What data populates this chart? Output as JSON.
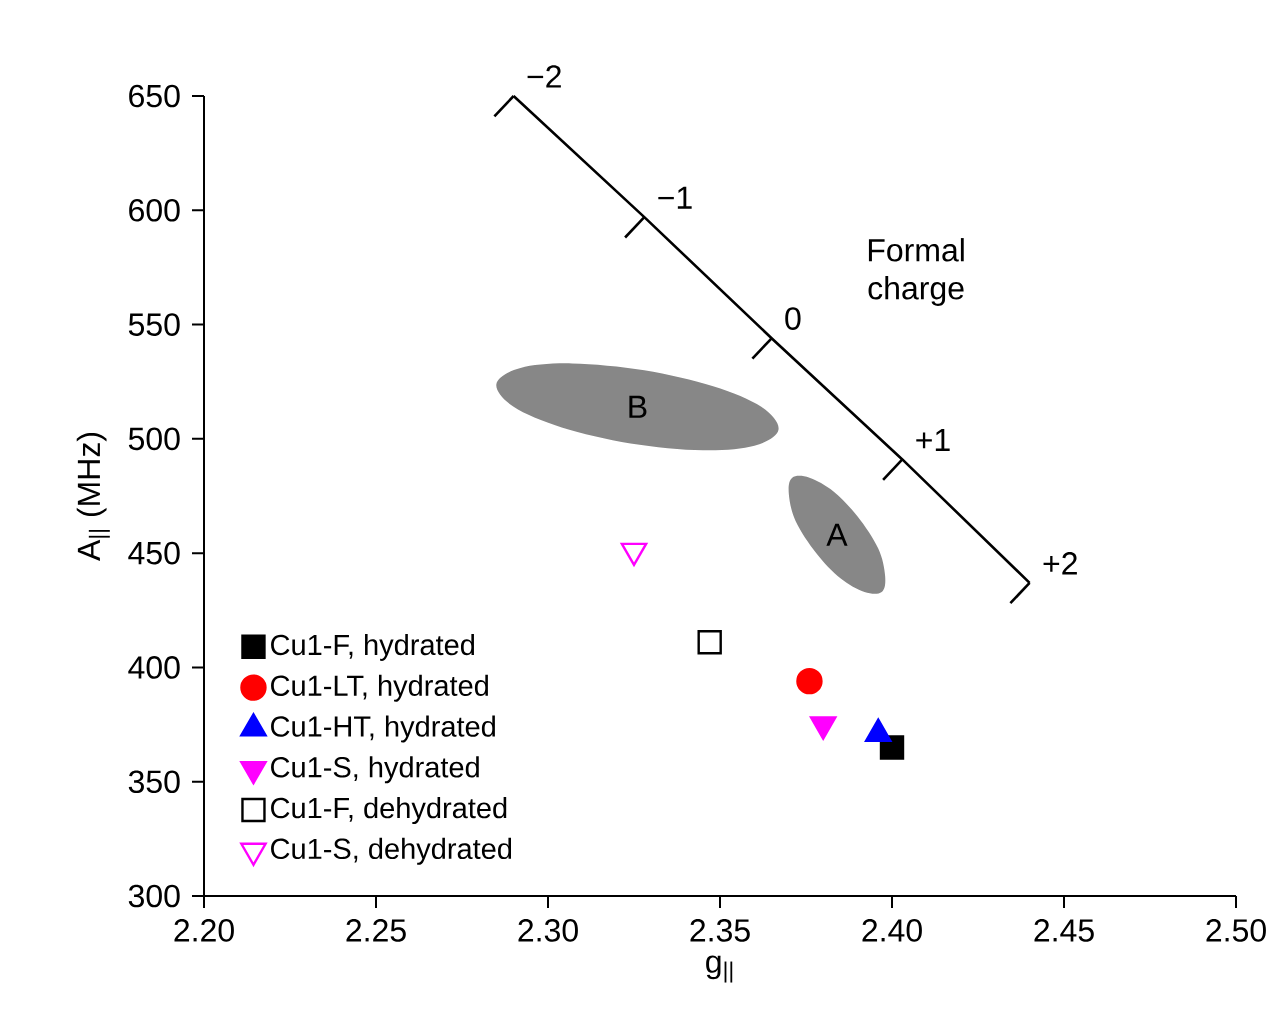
{
  "chart_data": {
    "type": "scatter",
    "xlabel": "g$_{||}$",
    "ylabel": "A$_{||}$ (MHz)",
    "xlim": [
      2.2,
      2.5
    ],
    "ylim": [
      300,
      650
    ],
    "xticks": [
      {
        "value": 2.2,
        "label": "2.20"
      },
      {
        "value": 2.25,
        "label": "2.25"
      },
      {
        "value": 2.3,
        "label": "2.30"
      },
      {
        "value": 2.35,
        "label": "2.35"
      },
      {
        "value": 2.4,
        "label": "2.40"
      },
      {
        "value": 2.45,
        "label": "2.45"
      },
      {
        "value": 2.5,
        "label": "2.50"
      }
    ],
    "yticks": [
      300,
      350,
      400,
      450,
      500,
      550,
      600,
      650
    ],
    "grid": false,
    "legend": "bottom left",
    "annotations": [
      {
        "text": "−2",
        "x": 2.29,
        "y": 650
      },
      {
        "text": "−1",
        "x": 2.328,
        "y": 597
      },
      {
        "text": "0",
        "x": 2.365,
        "y": 544
      },
      {
        "text": "+1",
        "x": 2.403,
        "y": 491
      },
      {
        "text": "+2",
        "x": 2.44,
        "y": 437
      },
      "Formal charge"
    ],
    "series": [
      {
        "name": "Cu1-F, hydrated",
        "color": "#000000",
        "marker": "square",
        "x": [
          2.4
        ],
        "values": [
          365
        ]
      },
      {
        "name": "Cu1-LT, hydrated",
        "color": "#ff0000",
        "marker": "circle",
        "x": [
          2.376
        ],
        "values": [
          394
        ]
      },
      {
        "name": "Cu1-HT, hydrated",
        "color": "#0000ff",
        "marker": "triangle",
        "x": [
          2.396
        ],
        "values": [
          371
        ]
      },
      {
        "name": "Cu1-S, hydrated",
        "color": "#ff00ff",
        "marker": "triangle-down",
        "x": [
          2.38
        ],
        "values": [
          375
        ]
      },
      {
        "name": "Cu1-F, dehydrated",
        "color": "#000000",
        "marker": "square-open",
        "x": [
          2.347
        ],
        "values": [
          411
        ]
      },
      {
        "name": "Cu1-S, dehydrated",
        "color": "#ff00ff",
        "marker": "triangle-down-open",
        "x": [
          2.325
        ],
        "values": [
          451
        ]
      },
      {
        "type": "line",
        "color": "#000000",
        "marker": "none",
        "line_style": "solid",
        "x": [
          2.29,
          2.328,
          2.365,
          2.403,
          2.44
        ],
        "values": [
          650,
          597,
          544,
          491,
          437
        ]
      },
      {
        "type": "area",
        "name": "B",
        "color": "#878787",
        "x": [
          2.367,
          2.362,
          2.348,
          2.328,
          2.307,
          2.292,
          2.285,
          2.29,
          2.304,
          2.324,
          2.345,
          2.36
        ],
        "values": [
          504,
          514,
          523,
          530,
          533,
          531,
          524,
          514,
          505,
          498,
          495,
          497
        ]
      },
      {
        "type": "area",
        "name": "A",
        "color": "#878787",
        "x": [
          2.397,
          2.398,
          2.396,
          2.39,
          2.383,
          2.376,
          2.371,
          2.37,
          2.372,
          2.378,
          2.385,
          2.392
        ],
        "values": [
          433,
          440,
          452,
          466,
          477,
          483,
          483,
          476,
          464,
          450,
          439,
          433
        ]
      }
    ]
  }
}
